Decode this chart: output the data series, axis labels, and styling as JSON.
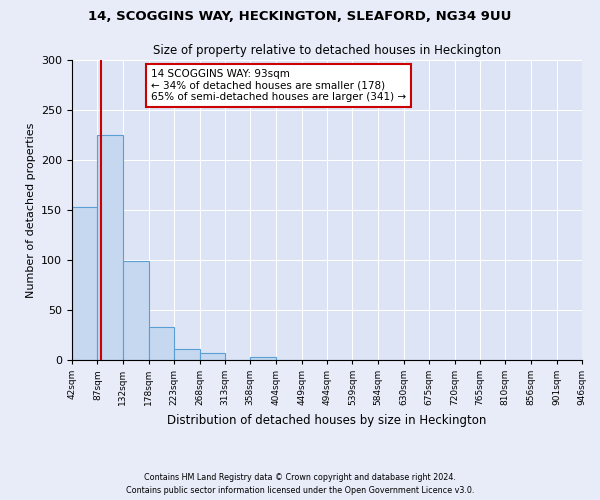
{
  "title1": "14, SCOGGINS WAY, HECKINGTON, SLEAFORD, NG34 9UU",
  "title2": "Size of property relative to detached houses in Heckington",
  "xlabel": "Distribution of detached houses by size in Heckington",
  "ylabel": "Number of detached properties",
  "bar_heights": [
    153,
    225,
    99,
    33,
    11,
    7,
    0,
    3,
    0,
    0,
    0,
    0,
    0,
    0,
    0,
    0,
    0,
    0,
    0,
    0
  ],
  "bin_edges": [
    42,
    87,
    132,
    178,
    223,
    268,
    313,
    358,
    404,
    449,
    494,
    539,
    584,
    630,
    675,
    720,
    765,
    810,
    856,
    901,
    946
  ],
  "tick_labels": [
    "42sqm",
    "87sqm",
    "132sqm",
    "178sqm",
    "223sqm",
    "268sqm",
    "313sqm",
    "358sqm",
    "404sqm",
    "449sqm",
    "494sqm",
    "539sqm",
    "584sqm",
    "630sqm",
    "675sqm",
    "720sqm",
    "765sqm",
    "810sqm",
    "856sqm",
    "901sqm",
    "946sqm"
  ],
  "bar_color": "#c5d8f0",
  "bar_edge_color": "#5a9fd4",
  "ref_line_x": 93,
  "ref_line_color": "#cc0000",
  "annotation_text": "14 SCOGGINS WAY: 93sqm\n← 34% of detached houses are smaller (178)\n65% of semi-detached houses are larger (341) →",
  "annotation_box_color": "#ffffff",
  "annotation_box_edge": "#cc0000",
  "ylim": [
    0,
    300
  ],
  "yticks": [
    0,
    50,
    100,
    150,
    200,
    250,
    300
  ],
  "footer1": "Contains HM Land Registry data © Crown copyright and database right 2024.",
  "footer2": "Contains public sector information licensed under the Open Government Licence v3.0.",
  "bg_color": "#e8ecf8",
  "plot_bg_color": "#dce4f5"
}
